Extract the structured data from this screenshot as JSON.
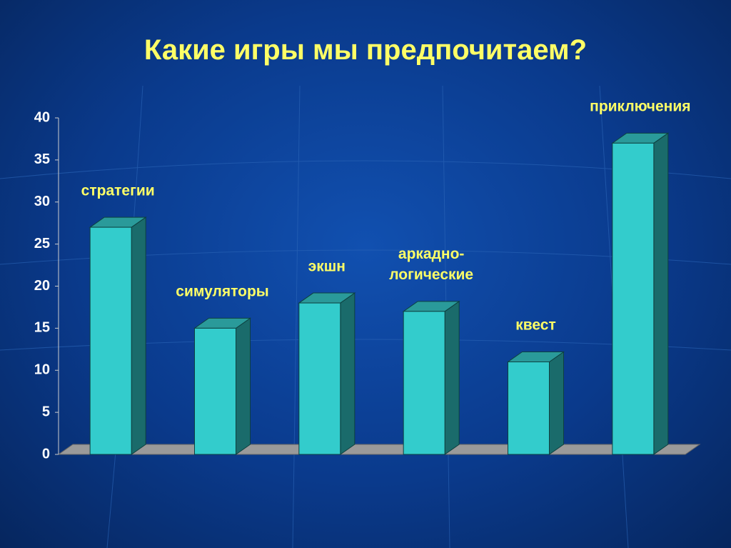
{
  "chart_data": {
    "type": "bar3d",
    "title": "Какие игры мы предпочитаем?",
    "categories": [
      "стратегии",
      "симуляторы",
      "экшн",
      "аркадно-логические",
      "квест",
      "приключения"
    ],
    "values": [
      27,
      15,
      18,
      17,
      11,
      37
    ],
    "color": "#33cccc",
    "ylim": [
      0,
      40
    ],
    "yticks": [
      0,
      5,
      10,
      15,
      20,
      25,
      30,
      35,
      40
    ],
    "grid": false
  }
}
